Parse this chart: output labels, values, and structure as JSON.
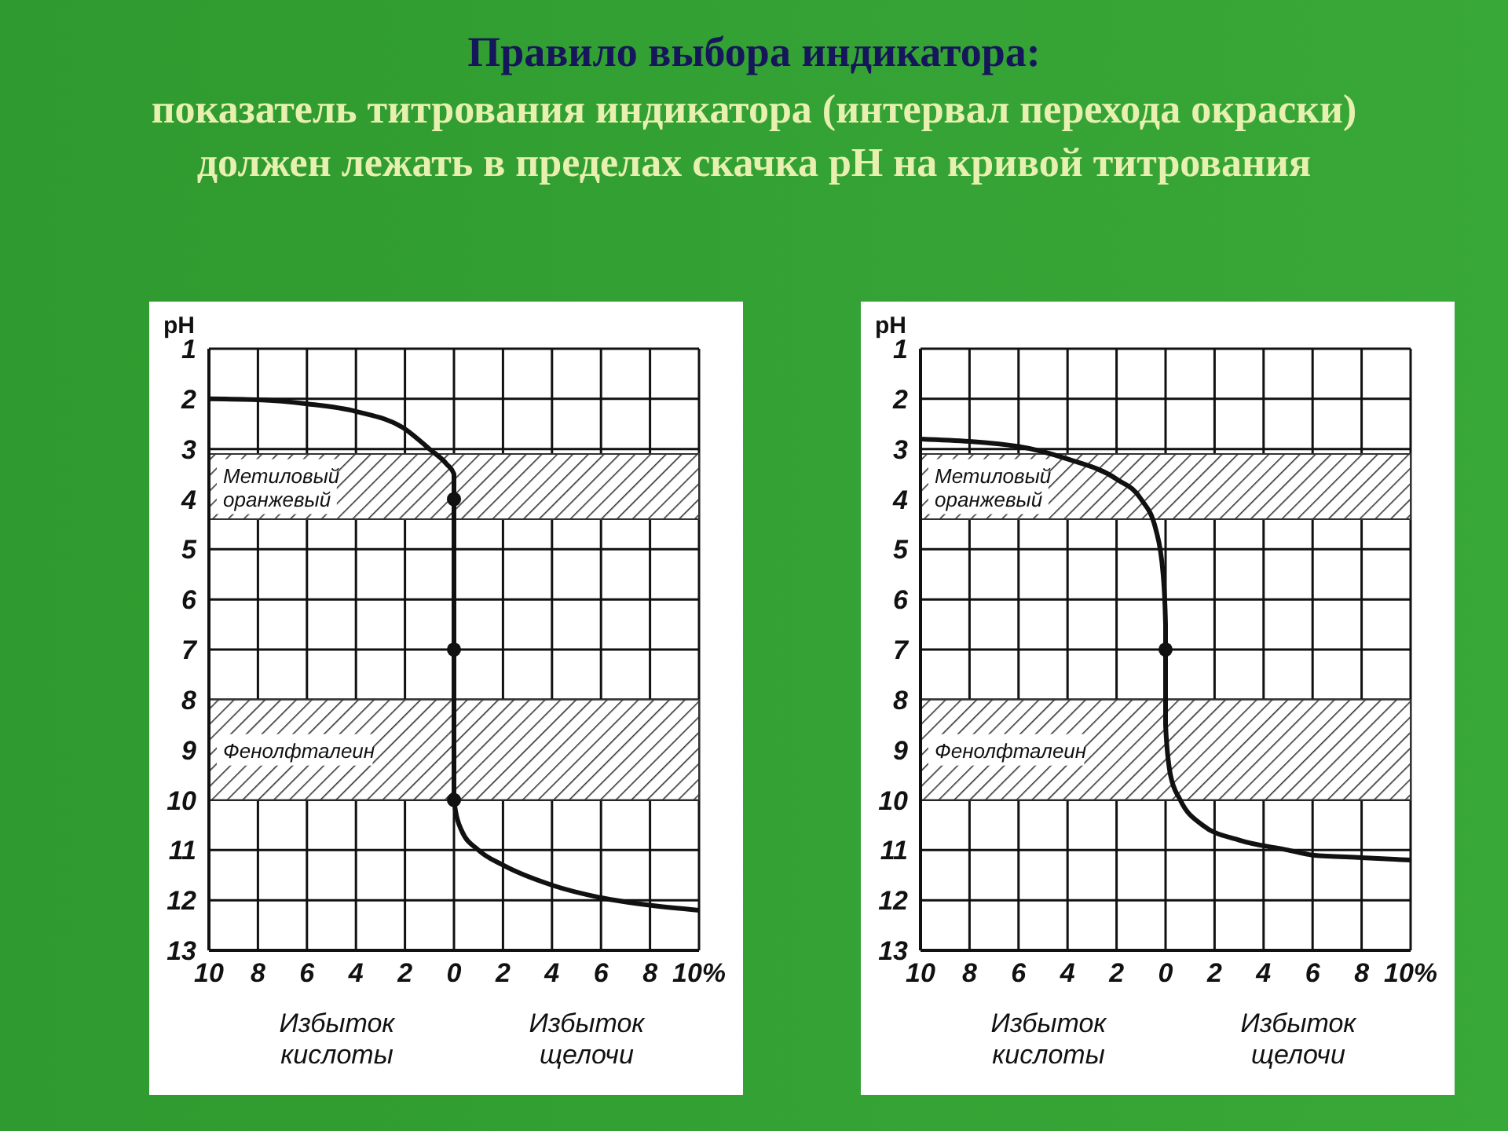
{
  "chart_data": [
    {
      "type": "line",
      "title": "Правило выбора индикатора:",
      "subtitle": "показатель титрования индикатора (интервал перехода окраски) должен лежать в пределах скачка pH на кривой титрования",
      "ylabel": "pH",
      "annotations": [
        "Избыток кислоты",
        "Избыток щелочи"
      ],
      "xlim": [
        -10,
        10
      ],
      "xticks": [
        {
          "value": -10,
          "label": "10"
        },
        {
          "value": -8,
          "label": "8"
        },
        {
          "value": -6,
          "label": "6"
        },
        {
          "value": -4,
          "label": "4"
        },
        {
          "value": -2,
          "label": "2"
        },
        0,
        2,
        4,
        6,
        8,
        {
          "value": 10,
          "label": "10%"
        }
      ],
      "ylim": [
        13,
        1
      ],
      "yticks": [
        1,
        2,
        3,
        4,
        5,
        6,
        7,
        8,
        9,
        10,
        11,
        12,
        13
      ],
      "grid": true,
      "line_style": "solid",
      "bands": [
        {
          "axis": "y",
          "from": 3.1,
          "to": 4.4,
          "label": "Метиловый оранжевый",
          "color": "#333333"
        },
        {
          "axis": "y",
          "from": 8,
          "to": 10,
          "label": "Фенолфталеин",
          "color": "#333333"
        }
      ],
      "series": [
        {
          "color": "#111111",
          "marker": "none",
          "x": [
            -10,
            -8,
            -6,
            -4,
            -2,
            -1,
            -0.3,
            0,
            0,
            0,
            0,
            0.3,
            1,
            2,
            4,
            6,
            8,
            10
          ],
          "values": [
            2,
            2.02,
            2.1,
            2.25,
            2.6,
            3,
            3.3,
            3.5,
            4,
            7,
            10,
            10.6,
            11,
            11.3,
            11.7,
            11.95,
            12.1,
            12.2
          ]
        },
        {
          "type": "scatter",
          "color": "#111111",
          "marker": "circle",
          "x": [
            0,
            0,
            0
          ],
          "values": [
            4,
            7,
            10
          ]
        }
      ]
    },
    {
      "type": "line",
      "ylabel": "pH",
      "annotations": [
        "Избыток кислоты",
        "Избыток щелочи"
      ],
      "xlim": [
        -10,
        10
      ],
      "xticks": [
        {
          "value": -10,
          "label": "10"
        },
        {
          "value": -8,
          "label": "8"
        },
        {
          "value": -6,
          "label": "6"
        },
        {
          "value": -4,
          "label": "4"
        },
        {
          "value": -2,
          "label": "2"
        },
        0,
        2,
        4,
        6,
        8,
        {
          "value": 10,
          "label": "10%"
        }
      ],
      "ylim": [
        13,
        1
      ],
      "yticks": [
        1,
        2,
        3,
        4,
        5,
        6,
        7,
        8,
        9,
        10,
        11,
        12,
        13
      ],
      "grid": true,
      "line_style": "solid",
      "bands": [
        {
          "axis": "y",
          "from": 3.1,
          "to": 4.4,
          "label": "Метиловый оранжевый",
          "color": "#333333"
        },
        {
          "axis": "y",
          "from": 8,
          "to": 10,
          "label": "Фенолфталеин",
          "color": "#333333"
        }
      ],
      "series": [
        {
          "color": "#111111",
          "marker": "none",
          "x": [
            -10,
            -6,
            -4,
            -2,
            -1,
            -0.4,
            -0.1,
            0,
            0,
            0,
            0.2,
            0.6,
            1.5,
            3,
            5,
            6,
            8,
            10
          ],
          "values": [
            2.8,
            2.95,
            3.2,
            3.6,
            4,
            4.6,
            5.5,
            6.5,
            7,
            8.5,
            9.5,
            10,
            10.5,
            10.8,
            11,
            11.1,
            11.15,
            11.2
          ]
        },
        {
          "type": "scatter",
          "color": "#111111",
          "marker": "circle",
          "x": [
            0
          ],
          "values": [
            7
          ]
        }
      ]
    }
  ]
}
